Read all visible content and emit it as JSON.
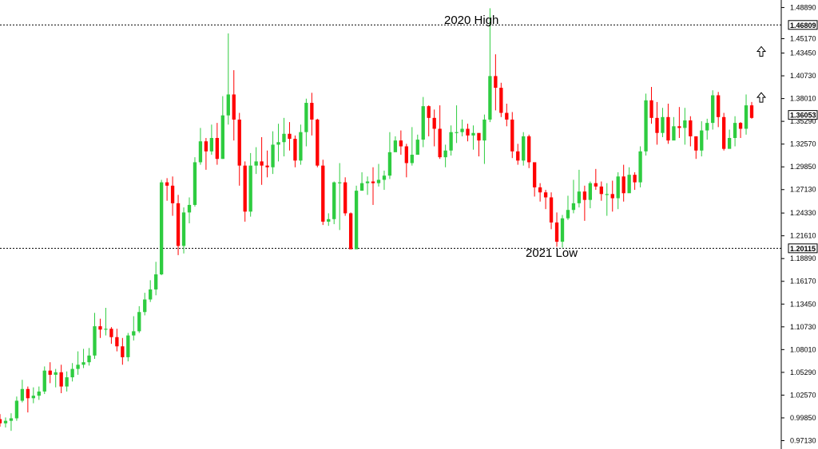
{
  "chart_data": {
    "type": "candlestick",
    "title": "",
    "xlabel": "",
    "ylabel": "",
    "ylim": [
      0.9613,
      1.4979
    ],
    "grid": false,
    "legend": "none",
    "y_ticks": [
      "1.48890",
      "1.45170",
      "1.43450",
      "1.40730",
      "1.38010",
      "1.35290",
      "1.32570",
      "1.29850",
      "1.27130",
      "1.24330",
      "1.21610",
      "1.18890",
      "1.16170",
      "1.13450",
      "1.10730",
      "1.08010",
      "1.05290",
      "1.02570",
      "0.99850",
      "0.97130"
    ],
    "colors": {
      "up": "#2ecc40",
      "down": "#ff0000",
      "wick_up": "#2ecc40",
      "wick_down": "#ff0000"
    },
    "reference_lines": [
      {
        "value": 1.46809,
        "label": "1.46809",
        "annotation": "2020 High"
      },
      {
        "value": 1.20115,
        "label": "1.20115",
        "annotation": "2021 Low"
      }
    ],
    "current_price": {
      "value": 1.36053,
      "label": "1.36053"
    },
    "arrow_icons": [
      {
        "name": "up-arrow-icon",
        "price": 1.4355
      },
      {
        "name": "up-arrow-icon",
        "price": 1.3805
      }
    ],
    "candles": [
      [
        0.997,
        0.992,
        1.003,
        0.988
      ],
      [
        0.992,
        0.995,
        0.999,
        0.987
      ],
      [
        0.995,
        0.998,
        1.004,
        0.983
      ],
      [
        0.998,
        1.019,
        1.024,
        0.995
      ],
      [
        1.019,
        1.033,
        1.044,
        1.017
      ],
      [
        1.033,
        1.022,
        1.036,
        1.005
      ],
      [
        1.022,
        1.025,
        1.035,
        1.016
      ],
      [
        1.025,
        1.03,
        1.036,
        1.02
      ],
      [
        1.03,
        1.055,
        1.06,
        1.027
      ],
      [
        1.055,
        1.05,
        1.065,
        1.04
      ],
      [
        1.05,
        1.053,
        1.057,
        1.035
      ],
      [
        1.053,
        1.036,
        1.062,
        1.028
      ],
      [
        1.036,
        1.047,
        1.054,
        1.03
      ],
      [
        1.047,
        1.057,
        1.064,
        1.042
      ],
      [
        1.057,
        1.062,
        1.078,
        1.05
      ],
      [
        1.062,
        1.065,
        1.081,
        1.058
      ],
      [
        1.065,
        1.073,
        1.082,
        1.061
      ],
      [
        1.073,
        1.108,
        1.124,
        1.069
      ],
      [
        1.108,
        1.104,
        1.117,
        1.094
      ],
      [
        1.104,
        1.105,
        1.13,
        1.097
      ],
      [
        1.105,
        1.095,
        1.107,
        1.087
      ],
      [
        1.095,
        1.084,
        1.105,
        1.078
      ],
      [
        1.084,
        1.071,
        1.094,
        1.062
      ],
      [
        1.071,
        1.097,
        1.1,
        1.066
      ],
      [
        1.097,
        1.102,
        1.12,
        1.091
      ],
      [
        1.102,
        1.125,
        1.132,
        1.1
      ],
      [
        1.125,
        1.14,
        1.148,
        1.121
      ],
      [
        1.14,
        1.152,
        1.163,
        1.137
      ],
      [
        1.152,
        1.17,
        1.185,
        1.145
      ],
      [
        1.17,
        1.28,
        1.283,
        1.169
      ],
      [
        1.28,
        1.276,
        1.285,
        1.258
      ],
      [
        1.276,
        1.255,
        1.287,
        1.24
      ],
      [
        1.255,
        1.204,
        1.265,
        1.193
      ],
      [
        1.204,
        1.244,
        1.25,
        1.195
      ],
      [
        1.244,
        1.253,
        1.262,
        1.231
      ],
      [
        1.253,
        1.304,
        1.31,
        1.251
      ],
      [
        1.304,
        1.329,
        1.345,
        1.301
      ],
      [
        1.329,
        1.317,
        1.333,
        1.295
      ],
      [
        1.317,
        1.333,
        1.349,
        1.313
      ],
      [
        1.333,
        1.308,
        1.351,
        1.301
      ],
      [
        1.308,
        1.36,
        1.383,
        1.308
      ],
      [
        1.36,
        1.385,
        1.458,
        1.349
      ],
      [
        1.385,
        1.355,
        1.414,
        1.33
      ],
      [
        1.355,
        1.3,
        1.363,
        1.276
      ],
      [
        1.3,
        1.245,
        1.305,
        1.233
      ],
      [
        1.245,
        1.3,
        1.315,
        1.239
      ],
      [
        1.3,
        1.305,
        1.322,
        1.29
      ],
      [
        1.305,
        1.3,
        1.334,
        1.277
      ],
      [
        1.3,
        1.298,
        1.318,
        1.286
      ],
      [
        1.298,
        1.325,
        1.341,
        1.29
      ],
      [
        1.325,
        1.328,
        1.35,
        1.305
      ],
      [
        1.328,
        1.338,
        1.357,
        1.311
      ],
      [
        1.338,
        1.332,
        1.352,
        1.318
      ],
      [
        1.332,
        1.306,
        1.336,
        1.298
      ],
      [
        1.306,
        1.34,
        1.349,
        1.301
      ],
      [
        1.34,
        1.375,
        1.38,
        1.323
      ],
      [
        1.375,
        1.355,
        1.387,
        1.336
      ],
      [
        1.355,
        1.3,
        1.356,
        1.298
      ],
      [
        1.3,
        1.233,
        1.307,
        1.229
      ],
      [
        1.233,
        1.236,
        1.243,
        1.228
      ],
      [
        1.236,
        1.28,
        1.281,
        1.23
      ],
      [
        1.28,
        1.28,
        1.303,
        1.223
      ],
      [
        1.28,
        1.243,
        1.286,
        1.24
      ],
      [
        1.243,
        1.2,
        1.244,
        1.203
      ],
      [
        1.2,
        1.27,
        1.276,
        1.228
      ],
      [
        1.27,
        1.279,
        1.292,
        1.27
      ],
      [
        1.279,
        1.281,
        1.287,
        1.265
      ],
      [
        1.281,
        1.279,
        1.298,
        1.253
      ],
      [
        1.279,
        1.283,
        1.302,
        1.275
      ],
      [
        1.283,
        1.288,
        1.294,
        1.271
      ],
      [
        1.288,
        1.316,
        1.34,
        1.284
      ],
      [
        1.316,
        1.33,
        1.335,
        1.321
      ],
      [
        1.33,
        1.323,
        1.342,
        1.313
      ],
      [
        1.323,
        1.303,
        1.326,
        1.286
      ],
      [
        1.303,
        1.313,
        1.346,
        1.3
      ],
      [
        1.313,
        1.331,
        1.337,
        1.323
      ],
      [
        1.331,
        1.371,
        1.382,
        1.322
      ],
      [
        1.371,
        1.357,
        1.372,
        1.335
      ],
      [
        1.357,
        1.344,
        1.367,
        1.323
      ],
      [
        1.344,
        1.31,
        1.372,
        1.308
      ],
      [
        1.31,
        1.318,
        1.325,
        1.298
      ],
      [
        1.318,
        1.34,
        1.348,
        1.312
      ],
      [
        1.34,
        1.34,
        1.372,
        1.327
      ],
      [
        1.34,
        1.344,
        1.355,
        1.335
      ],
      [
        1.344,
        1.336,
        1.35,
        1.329
      ],
      [
        1.336,
        1.339,
        1.348,
        1.319
      ],
      [
        1.339,
        1.33,
        1.336,
        1.311
      ],
      [
        1.33,
        1.355,
        1.361,
        1.302
      ],
      [
        1.355,
        1.407,
        1.488,
        1.352
      ],
      [
        1.407,
        1.393,
        1.433,
        1.366
      ],
      [
        1.393,
        1.363,
        1.399,
        1.358
      ],
      [
        1.363,
        1.355,
        1.374,
        1.347
      ],
      [
        1.355,
        1.317,
        1.364,
        1.309
      ],
      [
        1.317,
        1.306,
        1.326,
        1.301
      ],
      [
        1.306,
        1.335,
        1.34,
        1.3
      ],
      [
        1.335,
        1.304,
        1.337,
        1.297
      ],
      [
        1.304,
        1.274,
        1.294,
        1.263
      ],
      [
        1.274,
        1.268,
        1.279,
        1.257
      ],
      [
        1.268,
        1.262,
        1.271,
        1.248
      ],
      [
        1.262,
        1.232,
        1.268,
        1.224
      ],
      [
        1.232,
        1.209,
        1.244,
        1.203
      ],
      [
        1.209,
        1.237,
        1.241,
        1.202
      ],
      [
        1.237,
        1.247,
        1.264,
        1.235
      ],
      [
        1.247,
        1.255,
        1.283,
        1.243
      ],
      [
        1.255,
        1.269,
        1.295,
        1.25
      ],
      [
        1.269,
        1.259,
        1.276,
        1.234
      ],
      [
        1.259,
        1.279,
        1.281,
        1.249
      ],
      [
        1.279,
        1.275,
        1.296,
        1.271
      ],
      [
        1.275,
        1.266,
        1.281,
        1.258
      ],
      [
        1.266,
        1.266,
        1.279,
        1.24
      ],
      [
        1.266,
        1.261,
        1.282,
        1.245
      ],
      [
        1.261,
        1.287,
        1.292,
        1.248
      ],
      [
        1.287,
        1.267,
        1.301,
        1.257
      ],
      [
        1.267,
        1.289,
        1.298,
        1.278
      ],
      [
        1.289,
        1.28,
        1.292,
        1.271
      ],
      [
        1.28,
        1.317,
        1.323,
        1.274
      ],
      [
        1.317,
        1.378,
        1.386,
        1.312
      ],
      [
        1.378,
        1.357,
        1.394,
        1.35
      ],
      [
        1.357,
        1.339,
        1.376,
        1.325
      ],
      [
        1.339,
        1.358,
        1.369,
        1.334
      ],
      [
        1.358,
        1.33,
        1.374,
        1.326
      ],
      [
        1.33,
        1.347,
        1.358,
        1.331
      ],
      [
        1.347,
        1.345,
        1.37,
        1.333
      ],
      [
        1.345,
        1.354,
        1.369,
        1.325
      ],
      [
        1.354,
        1.335,
        1.359,
        1.323
      ],
      [
        1.335,
        1.318,
        1.335,
        1.308
      ],
      [
        1.318,
        1.342,
        1.353,
        1.311
      ],
      [
        1.342,
        1.351,
        1.356,
        1.331
      ],
      [
        1.351,
        1.384,
        1.39,
        1.343
      ],
      [
        1.384,
        1.358,
        1.388,
        1.346
      ],
      [
        1.358,
        1.32,
        1.363,
        1.318
      ],
      [
        1.32,
        1.333,
        1.343,
        1.325
      ],
      [
        1.333,
        1.351,
        1.359,
        1.323
      ],
      [
        1.351,
        1.344,
        1.352,
        1.333
      ],
      [
        1.344,
        1.372,
        1.385,
        1.337
      ],
      [
        1.372,
        1.357,
        1.376,
        1.356
      ]
    ]
  }
}
